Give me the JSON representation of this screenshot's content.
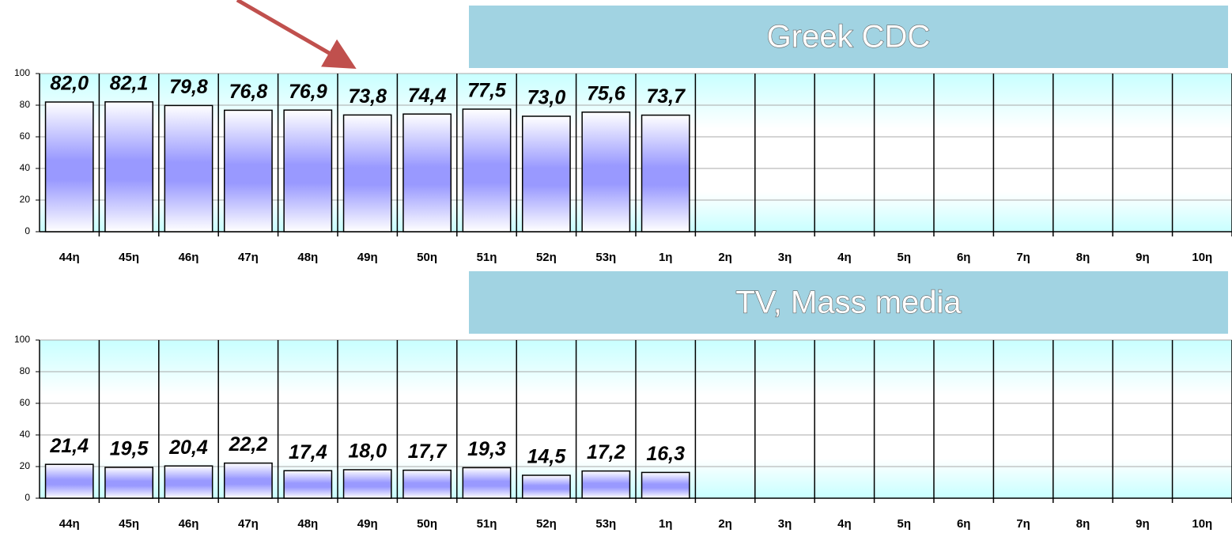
{
  "chart_data": [
    {
      "type": "bar",
      "title": "Greek CDC",
      "categories": [
        "44η",
        "45η",
        "46η",
        "47η",
        "48η",
        "49η",
        "50η",
        "51η",
        "52η",
        "53η",
        "1η",
        "2η",
        "3η",
        "4η",
        "5η",
        "6η",
        "7η",
        "8η",
        "9η",
        "10η"
      ],
      "values": [
        82.0,
        82.1,
        79.8,
        76.8,
        76.9,
        73.8,
        74.4,
        77.5,
        73.0,
        75.6,
        73.7,
        null,
        null,
        null,
        null,
        null,
        null,
        null,
        null,
        null
      ],
      "value_labels": [
        "82,0",
        "82,1",
        "79,8",
        "76,8",
        "76,9",
        "73,8",
        "74,4",
        "77,5",
        "73,0",
        "75,6",
        "73,7",
        null,
        null,
        null,
        null,
        null,
        null,
        null,
        null,
        null
      ],
      "color": "#9999ff",
      "ylim": [
        0,
        100
      ],
      "yticks": [
        0,
        20,
        40,
        60,
        80,
        100
      ],
      "grid": true
    },
    {
      "type": "bar",
      "title": "TV, Mass media",
      "categories": [
        "44η",
        "45η",
        "46η",
        "47η",
        "48η",
        "49η",
        "50η",
        "51η",
        "52η",
        "53η",
        "1η",
        "2η",
        "3η",
        "4η",
        "5η",
        "6η",
        "7η",
        "8η",
        "9η",
        "10η"
      ],
      "values": [
        21.4,
        19.5,
        20.4,
        22.2,
        17.4,
        18.0,
        17.7,
        19.3,
        14.5,
        17.2,
        16.3,
        null,
        null,
        null,
        null,
        null,
        null,
        null,
        null,
        null
      ],
      "value_labels": [
        "21,4",
        "19,5",
        "20,4",
        "22,2",
        "17,4",
        "18,0",
        "17,7",
        "19,3",
        "14,5",
        "17,2",
        "16,3",
        null,
        null,
        null,
        null,
        null,
        null,
        null,
        null,
        null
      ],
      "color": "#9999ff",
      "ylim": [
        0,
        100
      ],
      "yticks": [
        0,
        20,
        40,
        60,
        80,
        100
      ],
      "grid": true
    }
  ]
}
